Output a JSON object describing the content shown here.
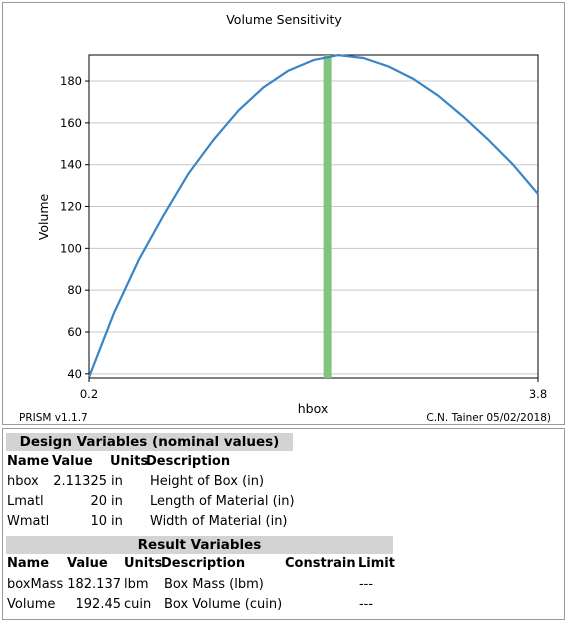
{
  "chart_data": {
    "type": "line",
    "title": "Volume Sensitivity",
    "xlabel": "hbox",
    "ylabel": "Volume",
    "xlim": [
      0.2,
      3.8
    ],
    "ylim": [
      38,
      192.45
    ],
    "x_ticks": [
      "0.2",
      "3.8"
    ],
    "y_ticks": [
      40,
      60,
      80,
      100,
      120,
      140,
      160,
      180
    ],
    "grid": "horizontal",
    "line_color": "#3a85c6",
    "marker_color": "#80c47f",
    "marker_x": 2.11325,
    "series": [
      {
        "x": [
          0.2,
          0.4,
          0.6,
          0.8,
          1.0,
          1.2,
          1.4,
          1.6,
          1.8,
          2.0,
          2.2,
          2.4,
          2.6,
          2.8,
          3.0,
          3.2,
          3.4,
          3.6,
          3.8
        ],
        "values": [
          38.4,
          69.0,
          94.6,
          116.0,
          136.0,
          152.0,
          166.0,
          177.0,
          185.0,
          190.0,
          192.4,
          191.0,
          187.0,
          181.0,
          173.0,
          163.0,
          152.0,
          140.0,
          126.0
        ]
      }
    ],
    "footer_left": "PRISM v1.1.7",
    "footer_right": "C.N. Tainer 05/02/2018)"
  },
  "design": {
    "title": "Design Variables (nominal values)",
    "headers": {
      "name": "Name",
      "value": "Value",
      "units": "Units",
      "description": "Description"
    },
    "rows": [
      {
        "name": "hbox",
        "value": "2.11325",
        "units": "in",
        "description": "Height of Box (in)"
      },
      {
        "name": "Lmatl",
        "value": "20",
        "units": "in",
        "description": "Length of Material (in)"
      },
      {
        "name": "Wmatl",
        "value": "10",
        "units": "in",
        "description": "Width of Material (in)"
      }
    ]
  },
  "results": {
    "title": "Result Variables",
    "headers": {
      "name": "Name",
      "value": "Value",
      "units": "Units",
      "description": "Description",
      "constrain": "Constrain",
      "limit": "Limit"
    },
    "rows": [
      {
        "name": "boxMass",
        "value": "182.137",
        "units": "lbm",
        "description": "Box Mass (lbm)",
        "constrain": "",
        "limit": "---"
      },
      {
        "name": "Volume",
        "value": "192.45",
        "units": "cuin",
        "description": "Box Volume (cuin)",
        "constrain": "",
        "limit": "---"
      }
    ]
  }
}
